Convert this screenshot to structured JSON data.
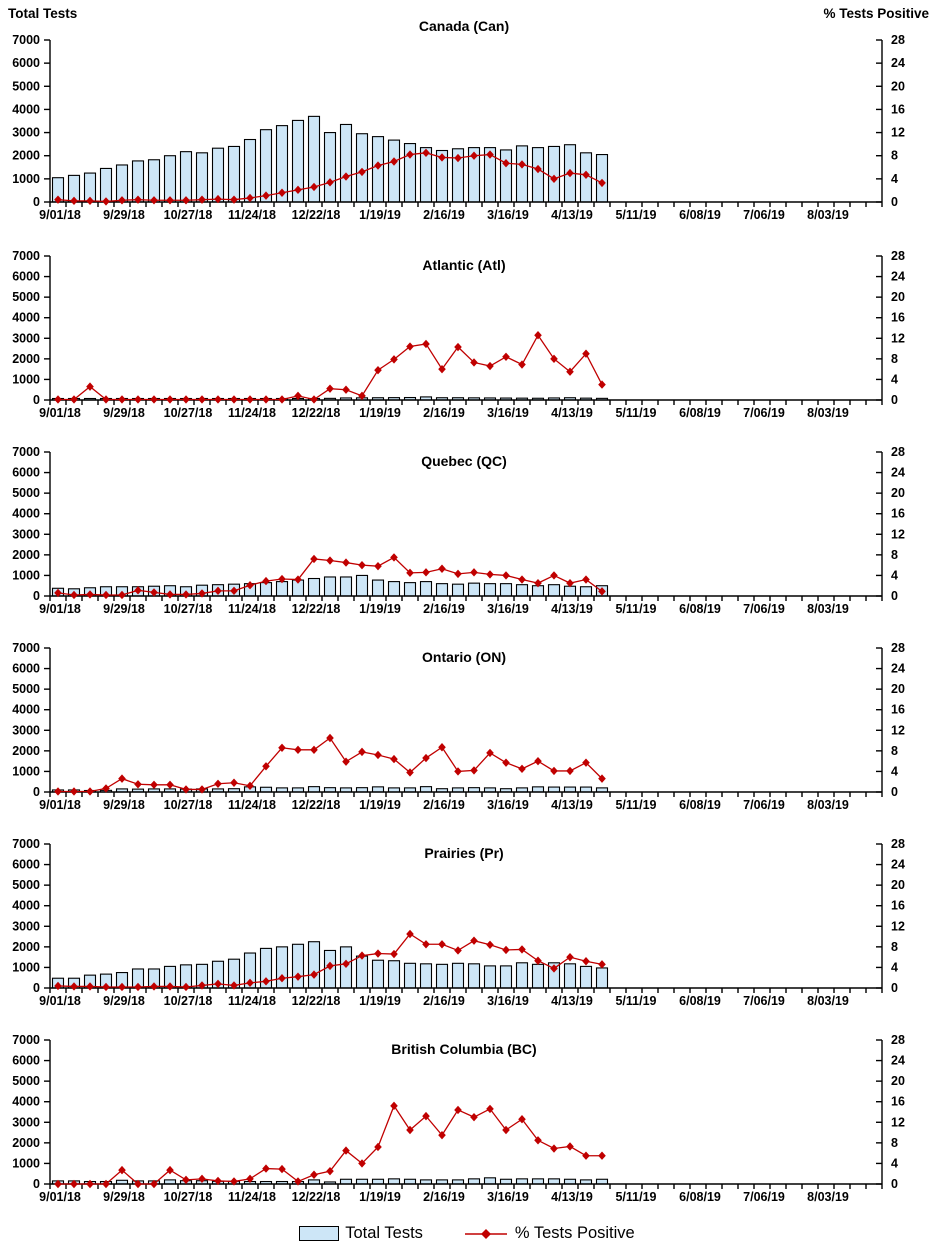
{
  "header": {
    "left_axis_title": "Total Tests",
    "right_axis_title": "% Tests Positive"
  },
  "legend": {
    "total_tests_label": "Total Tests",
    "pct_positive_label": "% Tests Positive"
  },
  "colors": {
    "bar_fill": "#CDE6F7",
    "bar_border": "#000000",
    "line": "#C00000",
    "axis": "#000000",
    "text": "#000000"
  },
  "axes": {
    "left_max": 7000,
    "right_max": 28,
    "left_ticks": [
      0,
      1000,
      2000,
      3000,
      4000,
      5000,
      6000,
      7000
    ],
    "right_ticks": [
      0,
      4,
      8,
      12,
      16,
      20,
      24,
      28
    ],
    "weeks_total": 52,
    "x_tick_labels": [
      "9/01/18",
      "9/29/18",
      "10/27/18",
      "11/24/18",
      "12/22/18",
      "1/19/19",
      "2/16/19",
      "3/16/19",
      "4/13/19",
      "5/11/19",
      "6/08/19",
      "7/06/19",
      "8/03/19"
    ]
  },
  "chart_data": [
    {
      "type": "bar",
      "title": "Canada (Can)",
      "region_code": "can",
      "series": [
        {
          "name": "Total Tests",
          "axis": "left"
        },
        {
          "name": "% Tests Positive",
          "axis": "right"
        }
      ],
      "weeks": [
        "9/01/18",
        "9/08/18",
        "9/15/18",
        "9/22/18",
        "9/29/18",
        "10/06/18",
        "10/13/18",
        "10/20/18",
        "10/27/18",
        "11/03/18",
        "11/10/18",
        "11/17/18",
        "11/24/18",
        "12/01/18",
        "12/08/18",
        "12/15/18",
        "12/22/18",
        "12/29/18",
        "1/05/19",
        "1/12/19",
        "1/19/19",
        "1/26/19",
        "2/02/19",
        "2/09/19",
        "2/16/19",
        "2/23/19",
        "3/02/19",
        "3/09/19",
        "3/16/19",
        "3/23/19",
        "3/30/19",
        "4/06/19",
        "4/13/19",
        "4/20/19",
        "4/27/19"
      ],
      "total_tests": [
        1050,
        1150,
        1250,
        1450,
        1600,
        1775,
        1825,
        2000,
        2175,
        2125,
        2325,
        2400,
        2700,
        3125,
        3300,
        3525,
        3700,
        3000,
        3350,
        2950,
        2825,
        2675,
        2525,
        2350,
        2225,
        2300,
        2350,
        2350,
        2250,
        2425,
        2350,
        2400,
        2475,
        2125,
        2050
      ],
      "pct_positive": [
        0.4,
        0.2,
        0.2,
        0.1,
        0.3,
        0.4,
        0.3,
        0.3,
        0.3,
        0.4,
        0.5,
        0.4,
        0.7,
        1.1,
        1.6,
        2.1,
        2.6,
        3.4,
        4.4,
        5.2,
        6.3,
        7.0,
        8.2,
        8.5,
        7.7,
        7.6,
        8.0,
        8.2,
        6.7,
        6.5,
        5.7,
        4.0,
        5.0,
        4.7,
        3.3
      ]
    },
    {
      "type": "bar",
      "title": "Atlantic (Atl)",
      "region_code": "atl",
      "weeks": [
        "9/01/18",
        "9/08/18",
        "9/15/18",
        "9/22/18",
        "9/29/18",
        "10/06/18",
        "10/13/18",
        "10/20/18",
        "10/27/18",
        "11/03/18",
        "11/10/18",
        "11/17/18",
        "11/24/18",
        "12/01/18",
        "12/08/18",
        "12/15/18",
        "12/22/18",
        "12/29/18",
        "1/05/19",
        "1/12/19",
        "1/19/19",
        "1/26/19",
        "2/02/19",
        "2/09/19",
        "2/16/19",
        "2/23/19",
        "3/02/19",
        "3/09/19",
        "3/16/19",
        "3/23/19",
        "3/30/19",
        "4/06/19",
        "4/13/19",
        "4/20/19",
        "4/27/19"
      ],
      "total_tests": [
        40,
        35,
        30,
        30,
        30,
        30,
        30,
        35,
        40,
        40,
        50,
        55,
        60,
        55,
        50,
        55,
        65,
        80,
        100,
        105,
        110,
        115,
        120,
        150,
        110,
        110,
        105,
        100,
        95,
        90,
        85,
        100,
        110,
        90,
        80
      ],
      "pct_positive": [
        0.1,
        0.1,
        2.6,
        0.1,
        0.1,
        0.1,
        0.1,
        0.1,
        0.1,
        0.1,
        0.1,
        0.1,
        0.1,
        0.1,
        0.1,
        0.8,
        0.1,
        2.2,
        2.0,
        0.8,
        5.8,
        7.9,
        10.4,
        10.9,
        6.0,
        10.3,
        7.3,
        6.6,
        8.4,
        6.9,
        12.6,
        8.0,
        5.5,
        9.0,
        3.0
      ]
    },
    {
      "type": "bar",
      "title": "Quebec (QC)",
      "region_code": "qc",
      "weeks": [
        "9/01/18",
        "9/08/18",
        "9/15/18",
        "9/22/18",
        "9/29/18",
        "10/06/18",
        "10/13/18",
        "10/20/18",
        "10/27/18",
        "11/03/18",
        "11/10/18",
        "11/17/18",
        "11/24/18",
        "12/01/18",
        "12/08/18",
        "12/15/18",
        "12/22/18",
        "12/29/18",
        "1/05/19",
        "1/12/19",
        "1/19/19",
        "1/26/19",
        "2/02/19",
        "2/09/19",
        "2/16/19",
        "2/23/19",
        "3/02/19",
        "3/09/19",
        "3/16/19",
        "3/23/19",
        "3/30/19",
        "4/06/19",
        "4/13/19",
        "4/20/19",
        "4/27/19"
      ],
      "total_tests": [
        375,
        350,
        400,
        450,
        450,
        450,
        475,
        500,
        450,
        525,
        550,
        575,
        600,
        650,
        700,
        775,
        850,
        925,
        925,
        1000,
        775,
        700,
        650,
        700,
        600,
        575,
        625,
        600,
        600,
        550,
        500,
        550,
        475,
        450,
        500
      ],
      "pct_positive": [
        0.6,
        0.2,
        0.3,
        0.2,
        0.2,
        1.1,
        0.7,
        0.3,
        0.3,
        0.5,
        1.0,
        1.0,
        2.1,
        2.9,
        3.3,
        3.2,
        7.2,
        6.9,
        6.5,
        6.0,
        5.8,
        7.5,
        4.5,
        4.6,
        5.3,
        4.3,
        4.6,
        4.2,
        4.0,
        3.2,
        2.5,
        4.0,
        2.5,
        3.2,
        0.9
      ]
    },
    {
      "type": "bar",
      "title": "Ontario (ON)",
      "region_code": "on",
      "weeks": [
        "9/01/18",
        "9/08/18",
        "9/15/18",
        "9/22/18",
        "9/29/18",
        "10/06/18",
        "10/13/18",
        "10/20/18",
        "10/27/18",
        "11/03/18",
        "11/10/18",
        "11/17/18",
        "11/24/18",
        "12/01/18",
        "12/08/18",
        "12/15/18",
        "12/22/18",
        "12/29/18",
        "1/05/19",
        "1/12/19",
        "1/19/19",
        "1/26/19",
        "2/02/19",
        "2/09/19",
        "2/16/19",
        "2/23/19",
        "3/02/19",
        "3/09/19",
        "3/16/19",
        "3/23/19",
        "3/30/19",
        "4/06/19",
        "4/13/19",
        "4/20/19",
        "4/27/19"
      ],
      "total_tests": [
        100,
        100,
        60,
        80,
        150,
        140,
        150,
        150,
        140,
        150,
        150,
        160,
        250,
        230,
        200,
        200,
        260,
        210,
        200,
        210,
        250,
        200,
        200,
        260,
        160,
        200,
        210,
        200,
        160,
        200,
        250,
        240,
        240,
        240,
        200
      ],
      "pct_positive": [
        0.1,
        0.1,
        0.1,
        0.7,
        2.6,
        1.5,
        1.4,
        1.4,
        0.5,
        0.5,
        1.6,
        1.8,
        1.2,
        5.0,
        8.6,
        8.2,
        8.2,
        10.5,
        5.9,
        7.8,
        7.2,
        6.4,
        3.8,
        6.6,
        8.7,
        4.0,
        4.2,
        7.6,
        5.7,
        4.5,
        6.0,
        4.1,
        4.1,
        5.7,
        2.6
      ]
    },
    {
      "type": "bar",
      "title": "Prairies (Pr)",
      "region_code": "pr",
      "weeks": [
        "9/01/18",
        "9/08/18",
        "9/15/18",
        "9/22/18",
        "9/29/18",
        "10/06/18",
        "10/13/18",
        "10/20/18",
        "10/27/18",
        "11/03/18",
        "11/10/18",
        "11/17/18",
        "11/24/18",
        "12/01/18",
        "12/08/18",
        "12/15/18",
        "12/22/18",
        "12/29/18",
        "1/05/19",
        "1/12/19",
        "1/19/19",
        "1/26/19",
        "2/02/19",
        "2/09/19",
        "2/16/19",
        "2/23/19",
        "3/02/19",
        "3/09/19",
        "3/16/19",
        "3/23/19",
        "3/30/19",
        "4/06/19",
        "4/13/19",
        "4/20/19",
        "4/27/19"
      ],
      "total_tests": [
        475,
        475,
        625,
        675,
        750,
        925,
        925,
        1050,
        1125,
        1150,
        1300,
        1400,
        1700,
        1925,
        2000,
        2125,
        2250,
        1825,
        2000,
        1550,
        1350,
        1325,
        1200,
        1175,
        1150,
        1200,
        1175,
        1075,
        1075,
        1225,
        1150,
        1225,
        1175,
        1050,
        975
      ],
      "pct_positive": [
        0.4,
        0.3,
        0.3,
        0.2,
        0.2,
        0.2,
        0.3,
        0.3,
        0.2,
        0.5,
        0.8,
        0.5,
        1.0,
        1.3,
        1.9,
        2.2,
        2.6,
        4.3,
        4.7,
        6.3,
        6.7,
        6.6,
        10.5,
        8.5,
        8.5,
        7.3,
        9.2,
        8.4,
        7.4,
        7.5,
        5.3,
        3.8,
        6.0,
        5.2,
        4.6
      ]
    },
    {
      "type": "bar",
      "title": "British Columbia (BC)",
      "region_code": "bc",
      "weeks": [
        "9/01/18",
        "9/08/18",
        "9/15/18",
        "9/22/18",
        "9/29/18",
        "10/06/18",
        "10/13/18",
        "10/20/18",
        "10/27/18",
        "11/03/18",
        "11/10/18",
        "11/17/18",
        "11/24/18",
        "12/01/18",
        "12/08/18",
        "12/15/18",
        "12/22/18",
        "12/29/18",
        "1/05/19",
        "1/12/19",
        "1/19/19",
        "1/26/19",
        "2/02/19",
        "2/09/19",
        "2/16/19",
        "2/23/19",
        "3/02/19",
        "3/09/19",
        "3/16/19",
        "3/23/19",
        "3/30/19",
        "4/06/19",
        "4/13/19",
        "4/20/19",
        "4/27/19"
      ],
      "total_tests": [
        150,
        150,
        120,
        120,
        180,
        150,
        150,
        200,
        160,
        160,
        130,
        130,
        120,
        120,
        120,
        120,
        200,
        100,
        230,
        230,
        230,
        250,
        230,
        200,
        200,
        200,
        250,
        300,
        230,
        250,
        250,
        250,
        230,
        200,
        230
      ],
      "pct_positive": [
        0,
        0,
        0,
        0,
        2.7,
        0,
        0,
        2.7,
        0.8,
        1.0,
        0.6,
        0.5,
        1.0,
        3.0,
        2.9,
        0.5,
        1.8,
        2.5,
        6.5,
        4.0,
        7.2,
        15.2,
        10.5,
        13.2,
        9.5,
        14.4,
        13.0,
        14.6,
        10.5,
        12.6,
        8.5,
        6.9,
        7.3,
        5.5,
        5.5
      ]
    }
  ]
}
